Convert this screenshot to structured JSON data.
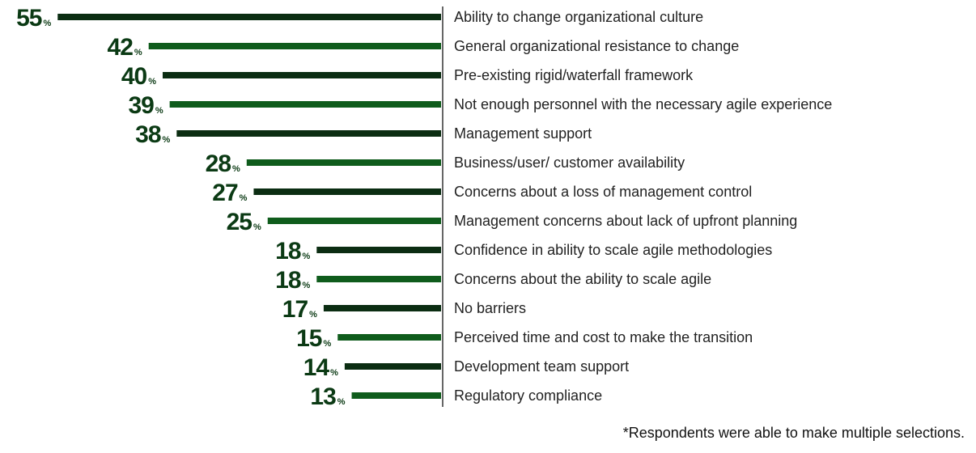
{
  "chart_data": {
    "type": "bar",
    "orientation": "horizontal",
    "categories": [
      "Ability to change organizational culture",
      "General organizational resistance to change",
      "Pre-existing rigid/waterfall framework",
      "Not enough personnel with the necessary agile experience",
      "Management support",
      "Business/user/ customer availability",
      "Concerns about a loss of management control",
      "Management concerns about lack of upfront planning",
      "Confidence in ability to scale agile methodologies",
      "Concerns about the ability to scale agile",
      "No barriers",
      "Perceived time and cost to make the transition",
      "Development team support",
      "Regulatory compliance"
    ],
    "values": [
      55,
      42,
      40,
      39,
      38,
      28,
      27,
      25,
      18,
      18,
      17,
      15,
      14,
      13
    ],
    "unit_suffix": "%",
    "title": "",
    "xlabel": "",
    "ylabel": "",
    "grid": false,
    "legend": "none"
  },
  "colors": {
    "bar_dark": "#0b2d12",
    "bar_green": "#0f5c1c",
    "label_value": "#0b3a14",
    "axis": "#333333"
  },
  "footnote": "*Respondents were able to make multiple selections."
}
